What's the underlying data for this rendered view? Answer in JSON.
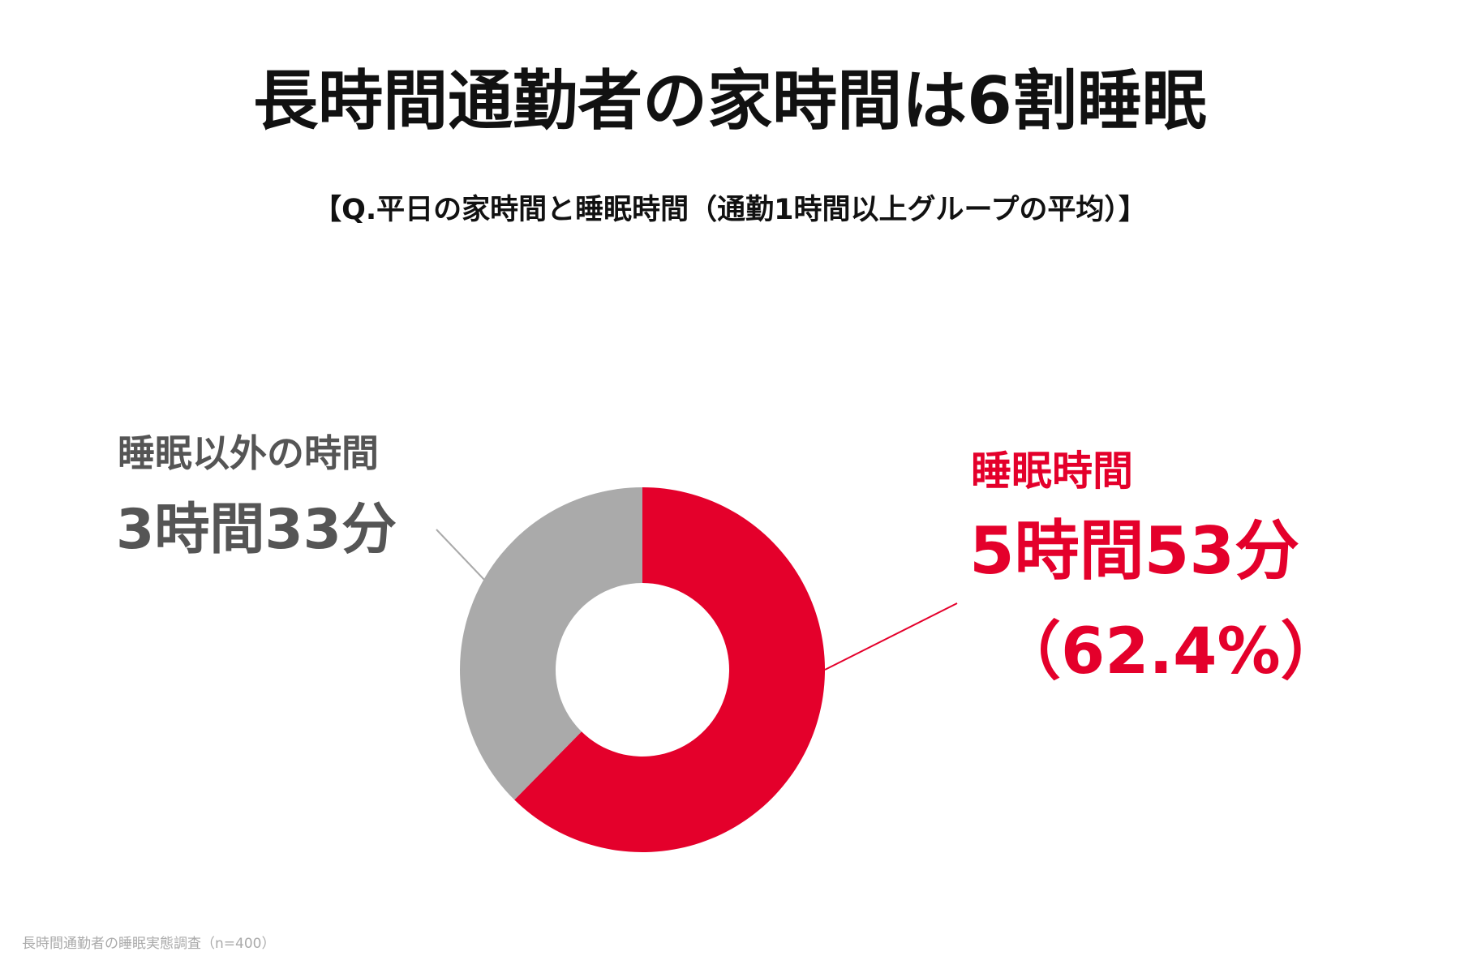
{
  "title": "長時間通勤者の家時間は6割睡眠",
  "subtitle": "【Q.平日の家時間と睡眠時間（通勤1時間以上グループの平均）】",
  "source": "長時間通勤者の睡眠実態調査（n=400）",
  "chart_data": {
    "type": "pie",
    "donut": true,
    "title": "長時間通勤者の家時間は6割睡眠",
    "subtitle": "【Q.平日の家時間と睡眠時間（通勤1時間以上グループの平均）】",
    "unit": "minutes",
    "slices": [
      {
        "name": "睡眠時間",
        "value": 353,
        "value_label": "5時間53分",
        "percent_label": "（62.4%）",
        "color": "#e4002b",
        "text_color": "#e4002b"
      },
      {
        "name": "睡眠以外の時間",
        "value": 213,
        "value_label": "3時間33分",
        "color": "#aaaaaa",
        "text_color": "#555555"
      }
    ],
    "start": "12 o'clock",
    "direction": "clockwise"
  }
}
